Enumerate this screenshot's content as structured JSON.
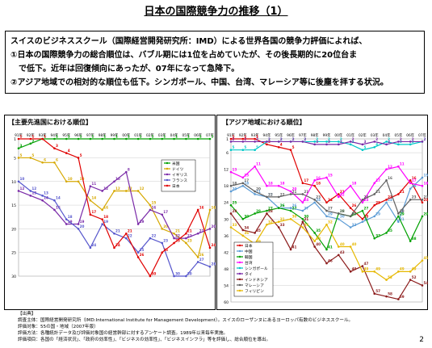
{
  "page": {
    "title": "日本の国際競争力の推移（1）",
    "summary": [
      "スイスのビジネススクール（国際経営開発研究所：IMD）による世界各国の競争力評価によれば、",
      "①日本の国際競争力の総合順位は、バブル期には1位を占めていたが、その後長期的に20位台ま",
      "　で低下。近年は回復傾向にあったが、07年になって急降下。",
      "②アジア地域での相対的な順位も低下。シンガポール、中国、台湾、マレーシア等に後塵を拝する状況。"
    ],
    "source": [
      "【出典】",
      "調査主体：国際経営開発研究所（IMD:International Institute for Management Development）。スイスのローザンヌにあるヨーロッパ有数のビジネススクール。",
      "評価対象：55の国・地域（2007年版）",
      "評価方法：各種統計データ及び評価対象国の経営幹部に対するアンケート調査。1989年以来毎年実施。",
      "評価項目：各国の「経済状況」、「政府の効率性」、「ビジネスの効率性」、「ビジネスインフラ」等を評価し、総合順位を導出。"
    ],
    "page_number": "2"
  },
  "chart_data": [
    {
      "type": "line",
      "title": "【主要先進国における順位】",
      "x": [
        "91年",
        "92年",
        "93年",
        "94年",
        "95年",
        "96年",
        "97年",
        "98年",
        "99年",
        "00年",
        "01年",
        "02年",
        "03年",
        "04年",
        "05年",
        "06年",
        "07年"
      ],
      "yticks": [
        1,
        5,
        10,
        15,
        20,
        25,
        30
      ],
      "ylim": [
        1,
        30
      ],
      "y_inverted": true,
      "legend_position": "top-right",
      "series": [
        {
          "name": "米国",
          "color": "#00a000",
          "values": [
            3,
            2,
            1,
            1,
            1,
            1,
            1,
            1,
            1,
            1,
            1,
            1,
            1,
            1,
            1,
            1,
            1
          ]
        },
        {
          "name": "ドイツ",
          "color": "#d6a800",
          "values": [
            5,
            5,
            6,
            6,
            10,
            10,
            14,
            16,
            12,
            12,
            12,
            15,
            20,
            21,
            23,
            26,
            16
          ]
        },
        {
          "name": "イギリス",
          "color": "#7a2aa8",
          "values": [
            12,
            13,
            14,
            16,
            19,
            19,
            11,
            12,
            10,
            8,
            19,
            16,
            17,
            22,
            22,
            21,
            20
          ]
        },
        {
          "name": "フランス",
          "color": "#5555cc",
          "values": [
            10,
            12,
            13,
            14,
            18,
            20,
            24,
            19,
            21,
            22,
            25,
            22,
            23,
            30,
            30,
            27,
            28
          ]
        },
        {
          "name": "日本",
          "color": "#e00000",
          "values": [
            1,
            1,
            1,
            3,
            4,
            5,
            17,
            18,
            24,
            21,
            26,
            30,
            25,
            23,
            21,
            16,
            24
          ]
        }
      ]
    },
    {
      "type": "line",
      "title": "【アジア地域における順位】",
      "x": [
        "91年",
        "92年",
        "93年",
        "94年",
        "95年",
        "96年",
        "97年",
        "98年",
        "99年",
        "00年",
        "01年",
        "02年",
        "03年",
        "04年",
        "05年",
        "06年",
        "07年"
      ],
      "yticks": [
        1,
        6,
        12,
        18,
        24,
        30,
        36,
        42,
        48,
        54,
        60
      ],
      "ylim": [
        1,
        60
      ],
      "y_inverted": true,
      "legend_position": "bottom-left",
      "series": [
        {
          "name": "日本",
          "color": "#e00000",
          "values": [
            1,
            1,
            1,
            3,
            4,
            5,
            17,
            18,
            24,
            21,
            26,
            30,
            25,
            23,
            21,
            16,
            24
          ]
        },
        {
          "name": "中国",
          "color": "#5b9bd5",
          "values": [
            20,
            18,
            21,
            22,
            26,
            26,
            27,
            24,
            29,
            30,
            33,
            31,
            29,
            24,
            31,
            19,
            15
          ]
        },
        {
          "name": "韓国",
          "color": "#00a000",
          "values": [
            25,
            30,
            28,
            27,
            26,
            27,
            30,
            35,
            41,
            28,
            29,
            27,
            37,
            35,
            29,
            38,
            29
          ]
        },
        {
          "name": "台湾",
          "color": "#ff00ff",
          "values": [
            13,
            15,
            11,
            18,
            18,
            20,
            24,
            16,
            15,
            22,
            18,
            24,
            17,
            12,
            11,
            17,
            18
          ]
        },
        {
          "name": "シンガポール",
          "color": "#00c8c8",
          "values": [
            5,
            5,
            5,
            2,
            2,
            2,
            2,
            2,
            2,
            2,
            3,
            5,
            4,
            2,
            3,
            3,
            2
          ]
        },
        {
          "name": "タイ",
          "color": "#7a2aa8",
          "values": [
            2,
            2,
            2,
            2,
            2,
            2,
            2,
            3,
            3,
            3,
            2,
            3,
            2,
            3,
            2,
            2,
            2
          ]
        },
        {
          "name": "インドネシア",
          "color": "#8b1a1a",
          "values": [
            28,
            34,
            35,
            28,
            33,
            41,
            31,
            40,
            46,
            43,
            49,
            47,
            57,
            58,
            59,
            52,
            54
          ]
        },
        {
          "name": "マレーシア",
          "color": "#606060",
          "values": [
            18,
            17,
            20,
            22,
            22,
            21,
            21,
            23,
            27,
            28,
            29,
            23,
            21,
            16,
            28,
            23,
            23
          ]
        },
        {
          "name": "フィリピン",
          "color": "#e6b800",
          "values": [
            33,
            36,
            39,
            32,
            31,
            30,
            33,
            38,
            32,
            40,
            40,
            49,
            49,
            52,
            49,
            49,
            45
          ]
        }
      ]
    }
  ]
}
